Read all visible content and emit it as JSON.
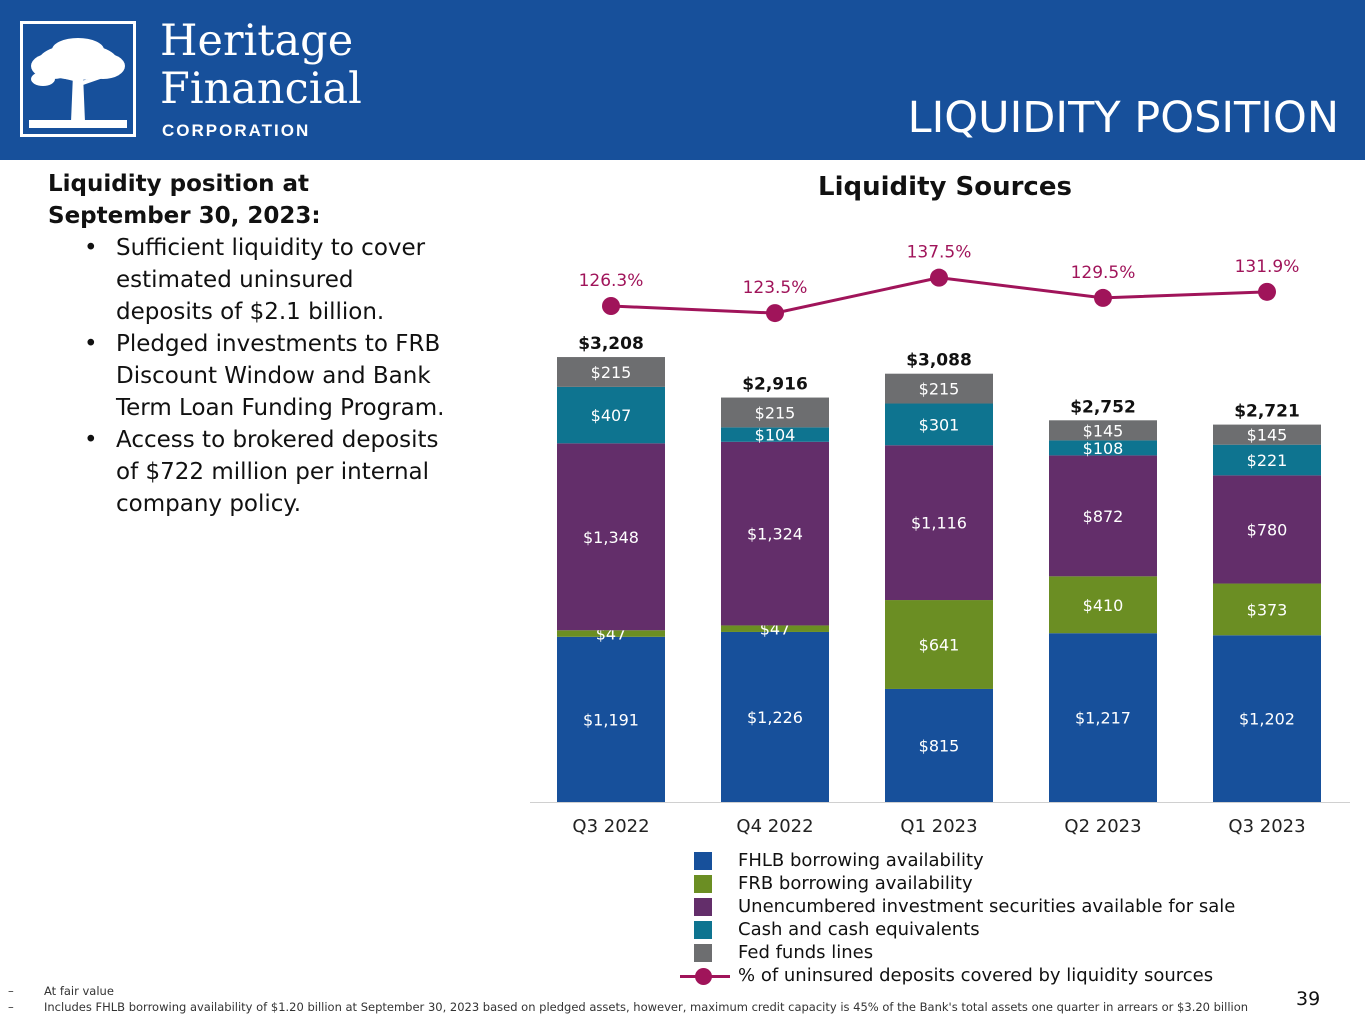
{
  "header": {
    "logo_line1": "Heritage",
    "logo_line2": "Financial",
    "logo_line3": "CORPORATION",
    "title": "LIQUIDITY POSITION",
    "bg_color": "#17509b"
  },
  "left_panel": {
    "heading_line1": "Liquidity position at",
    "heading_line2": "September 30, 2023:",
    "bullets": [
      [
        "Sufficient liquidity to cover",
        "estimated uninsured",
        "deposits of $2.1 billion."
      ],
      [
        "Pledged investments to FRB",
        "Discount Window and Bank",
        "Term Loan Funding Program."
      ],
      [
        "Access to brokered deposits",
        "of $722 million per internal",
        "company policy."
      ]
    ]
  },
  "chart_data": {
    "type": "bar",
    "stacked": true,
    "title": "Liquidity Sources",
    "xlabel": "",
    "ylabel": "",
    "categories": [
      "Q3 2022",
      "Q4 2022",
      "Q1 2023",
      "Q2 2023",
      "Q3 2023"
    ],
    "series": [
      {
        "name": "FHLB borrowing availability",
        "color": "#17509b",
        "values": [
          1191,
          1226,
          815,
          1217,
          1202
        ],
        "labels": [
          "$1,191",
          "$1,226",
          "$815",
          "$1,217",
          "$1,202"
        ]
      },
      {
        "name": "FRB borrowing availability",
        "color": "#6b8e23",
        "values": [
          47,
          47,
          641,
          410,
          373
        ],
        "labels": [
          "$47",
          "$47",
          "$641",
          "$410",
          "$373"
        ]
      },
      {
        "name": "Unencumbered investment securities available for sale",
        "color": "#632e6a",
        "values": [
          1348,
          1324,
          1116,
          872,
          780
        ],
        "labels": [
          "$1,348",
          "$1,324",
          "$1,116",
          "$872",
          "$780"
        ]
      },
      {
        "name": "Cash and cash equivalents",
        "color": "#0e7490",
        "values": [
          407,
          104,
          301,
          108,
          221
        ],
        "labels": [
          "$407",
          "$104",
          "$301",
          "$108",
          "$221"
        ]
      },
      {
        "name": "Fed funds lines",
        "color": "#6d6e70",
        "values": [
          215,
          215,
          215,
          145,
          145
        ],
        "labels": [
          "$215",
          "$215",
          "$215",
          "$145",
          "$145"
        ]
      }
    ],
    "totals": [
      3208,
      2916,
      3088,
      2752,
      2721
    ],
    "total_labels": [
      "$3,208",
      "$2,916",
      "$3,088",
      "$2,752",
      "$2,721"
    ],
    "line_series": {
      "name": "% of uninsured deposits covered by liquidity sources",
      "color": "#a0145a",
      "values": [
        126.3,
        123.5,
        137.5,
        129.5,
        131.9
      ],
      "labels": [
        "126.3%",
        "123.5%",
        "137.5%",
        "129.5%",
        "131.9%"
      ]
    },
    "ylim": [
      0,
      3300
    ],
    "grid": false,
    "legend_position": "bottom"
  },
  "footnotes": {
    "dash": "–",
    "items": [
      "At fair value",
      "Includes FHLB borrowing availability of $1.20 billion at September 30, 2023 based on pledged assets, however, maximum credit capacity is 45% of the Bank's total assets one quarter in arrears or $3.20 billion"
    ]
  },
  "page_number": "39"
}
